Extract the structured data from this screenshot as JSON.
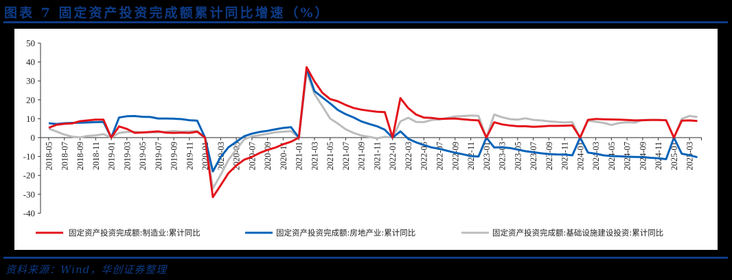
{
  "header": {
    "title": "图表 7   固定资产投资完成额累计同比增速（%）"
  },
  "footer": {
    "source": "资料来源：Wind，华创证券整理"
  },
  "colors": {
    "brand": "#0d3b87",
    "manufacturing": "#e3131b",
    "real_estate": "#0563b8",
    "infrastructure": "#bcbcbc"
  },
  "chart_data": {
    "type": "line",
    "title": "固定资产投资完成额累计同比增速（%）",
    "xlabel": "",
    "ylabel": "",
    "ylim": [
      -40,
      50
    ],
    "yticks": [
      50,
      40,
      30,
      20,
      10,
      0,
      -10,
      -20,
      -30,
      -40
    ],
    "grid": false,
    "legend_position": "bottom",
    "x": [
      "2018-05",
      "2018-06",
      "2018-07",
      "2018-08",
      "2018-09",
      "2018-10",
      "2018-11",
      "2018-12",
      "2019-01",
      "2019-02",
      "2019-03",
      "2019-04",
      "2019-05",
      "2019-06",
      "2019-07",
      "2019-08",
      "2019-09",
      "2019-10",
      "2019-11",
      "2019-12",
      "2020-01",
      "2020-02",
      "2020-03",
      "2020-04",
      "2020-05",
      "2020-06",
      "2020-07",
      "2020-08",
      "2020-09",
      "2020-10",
      "2020-11",
      "2020-12",
      "2021-01",
      "2021-02",
      "2021-03",
      "2021-04",
      "2021-05",
      "2021-06",
      "2021-07",
      "2021-08",
      "2021-09",
      "2021-10",
      "2021-11",
      "2021-12",
      "2022-01",
      "2022-02",
      "2022-03",
      "2022-04",
      "2022-05",
      "2022-06",
      "2022-07",
      "2022-08",
      "2022-09",
      "2022-10",
      "2022-11",
      "2022-12",
      "2023-01",
      "2023-02",
      "2023-03",
      "2023-04",
      "2023-05",
      "2023-06",
      "2023-07",
      "2023-08",
      "2023-09",
      "2023-10",
      "2023-11",
      "2023-12",
      "2024-01",
      "2024-02",
      "2024-03",
      "2024-04",
      "2024-05",
      "2024-06",
      "2024-07",
      "2024-08",
      "2024-09",
      "2024-10",
      "2024-11",
      "2024-12",
      "2025-01",
      "2025-02",
      "2025-03",
      "2025-04"
    ],
    "xtick_labels": [
      "2018-05",
      "2018-07",
      "2018-09",
      "2018-11",
      "2019-01",
      "2019-03",
      "2019-05",
      "2019-07",
      "2019-09",
      "2019-11",
      "2020-01",
      "2020-03",
      "2020-05",
      "2020-07",
      "2020-09",
      "2020-11",
      "2021-01",
      "2021-03",
      "2021-05",
      "2021-07",
      "2021-09",
      "2021-11",
      "2022-01",
      "2022-03",
      "2022-05",
      "2022-07",
      "2022-09",
      "2022-11",
      "2023-01",
      "2023-03",
      "2023-05",
      "2023-07",
      "2023-09",
      "2023-11",
      "2024-01",
      "2024-03",
      "2024-05",
      "2024-07",
      "2024-09",
      "2024-11",
      "2025-01",
      "2025-03"
    ],
    "series": [
      {
        "name": "固定资产投资完成额:制造业:累计同比",
        "color": "#e3131b",
        "values": [
          5.2,
          6.8,
          7.3,
          7.5,
          8.7,
          9.1,
          9.5,
          9.5,
          0,
          5.9,
          4.6,
          2.5,
          2.7,
          3.0,
          3.3,
          2.6,
          2.5,
          2.6,
          2.5,
          3.1,
          0,
          -31.5,
          -25.2,
          -18.8,
          -14.8,
          -11.7,
          -10.2,
          -8.1,
          -6.5,
          -5.3,
          -3.5,
          -2.2,
          0,
          37.3,
          29.8,
          23.8,
          20.4,
          19.2,
          17.3,
          15.7,
          14.8,
          14.2,
          13.7,
          13.5,
          0,
          20.9,
          15.6,
          12.2,
          10.6,
          10.4,
          9.9,
          10.0,
          10.1,
          9.7,
          9.3,
          9.1,
          0,
          8.1,
          7.0,
          6.4,
          6.0,
          6.0,
          5.7,
          5.9,
          6.2,
          6.2,
          6.3,
          6.5,
          0,
          9.4,
          9.9,
          9.7,
          9.6,
          9.5,
          9.3,
          9.1,
          9.2,
          9.3,
          9.3,
          9.2,
          0,
          9.0,
          9.1,
          8.8
        ]
      },
      {
        "name": "固定资产投资完成额:房地产业:累计同比",
        "color": "#0563b8",
        "values": [
          7.6,
          7.2,
          7.6,
          7.8,
          7.9,
          8.0,
          8.2,
          8.3,
          0,
          10.6,
          11.3,
          11.4,
          11.0,
          10.9,
          10.1,
          10.1,
          10.0,
          9.8,
          9.2,
          9.0,
          0,
          -17.9,
          -10.3,
          -5.1,
          -2.2,
          0.7,
          2.1,
          3.0,
          3.6,
          4.4,
          5.1,
          5.5,
          0,
          36.6,
          24.6,
          21.3,
          18.1,
          14.6,
          12.4,
          10.7,
          8.6,
          7.2,
          6.0,
          4.2,
          0,
          3.3,
          -0.6,
          -2.5,
          -3.9,
          -5.2,
          -5.9,
          -7.0,
          -8.0,
          -8.8,
          -9.8,
          -10.0,
          0,
          -5.2,
          -5.1,
          -5.5,
          -6.3,
          -7.2,
          -7.7,
          -8.3,
          -8.7,
          -8.9,
          -9.0,
          -9.4,
          0,
          -7.9,
          -8.5,
          -9.4,
          -9.8,
          -9.9,
          -10.1,
          -10.2,
          -10.3,
          -10.7,
          -10.9,
          -11.4,
          0,
          -8.5,
          -9.3,
          -10.4
        ]
      },
      {
        "name": "固定资产投资完成额:基础设施建设投资:累计同比",
        "color": "#bcbcbc",
        "values": [
          4.8,
          3.2,
          1.6,
          0.5,
          0.1,
          0.9,
          1.2,
          1.8,
          0,
          2.5,
          3.0,
          3.1,
          2.7,
          2.8,
          2.8,
          3.1,
          3.5,
          3.2,
          3.3,
          3.5,
          0,
          -26.9,
          -19.7,
          -11.8,
          -6.3,
          -1.0,
          0.7,
          1.3,
          2.0,
          2.8,
          3.1,
          3.4,
          0,
          35.0,
          23.1,
          16.7,
          10.1,
          7.4,
          4.4,
          2.5,
          1.1,
          0.4,
          -0.4,
          0.4,
          0,
          8.6,
          10.5,
          8.3,
          8.2,
          9.3,
          9.6,
          10.4,
          11.2,
          11.4,
          11.7,
          11.5,
          0,
          12.2,
          10.8,
          9.8,
          9.5,
          10.2,
          9.4,
          9.1,
          8.6,
          8.3,
          8.0,
          8.2,
          0,
          9.0,
          8.4,
          7.8,
          6.7,
          7.7,
          8.1,
          7.9,
          9.3,
          9.4,
          9.4,
          9.2,
          0,
          9.9,
          11.5,
          10.9
        ]
      }
    ]
  }
}
